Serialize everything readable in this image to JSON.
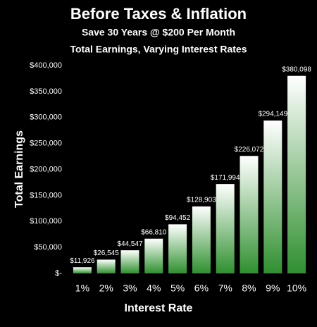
{
  "chart_data": {
    "type": "bar",
    "title": "Before Taxes & Inflation",
    "subtitle": [
      "Save 30 Years @ $200 Per Month",
      "Total Earnings, Varying Interest Rates"
    ],
    "x_label": "Interest Rate",
    "y_label": "Total Earnings",
    "categories": [
      "1%",
      "2%",
      "3%",
      "4%",
      "5%",
      "6%",
      "7%",
      "8%",
      "9%",
      "10%"
    ],
    "values": [
      11926,
      26545,
      44547,
      66810,
      94452,
      128903,
      171994,
      226072,
      294149,
      380098
    ],
    "value_labels": [
      "$11,926",
      "$26,545",
      "$44,547",
      "$66,810",
      "$94,452",
      "$128,903",
      "$171,994",
      "$226,072",
      "$294,149",
      "$380,098"
    ],
    "color": "#2f8f2f",
    "ylim": [
      0,
      400000
    ],
    "yticks": [
      {
        "value": 0,
        "label": "$-"
      },
      {
        "value": 50000,
        "label": "$50,000"
      },
      {
        "value": 100000,
        "label": "$100,000"
      },
      {
        "value": 150000,
        "label": "$150,000"
      },
      {
        "value": 200000,
        "label": "$200,000"
      },
      {
        "value": 250000,
        "label": "$250,000"
      },
      {
        "value": 300000,
        "label": "$300,000"
      },
      {
        "value": 350000,
        "label": "$350,000"
      },
      {
        "value": 400000,
        "label": "$400,000"
      }
    ]
  }
}
